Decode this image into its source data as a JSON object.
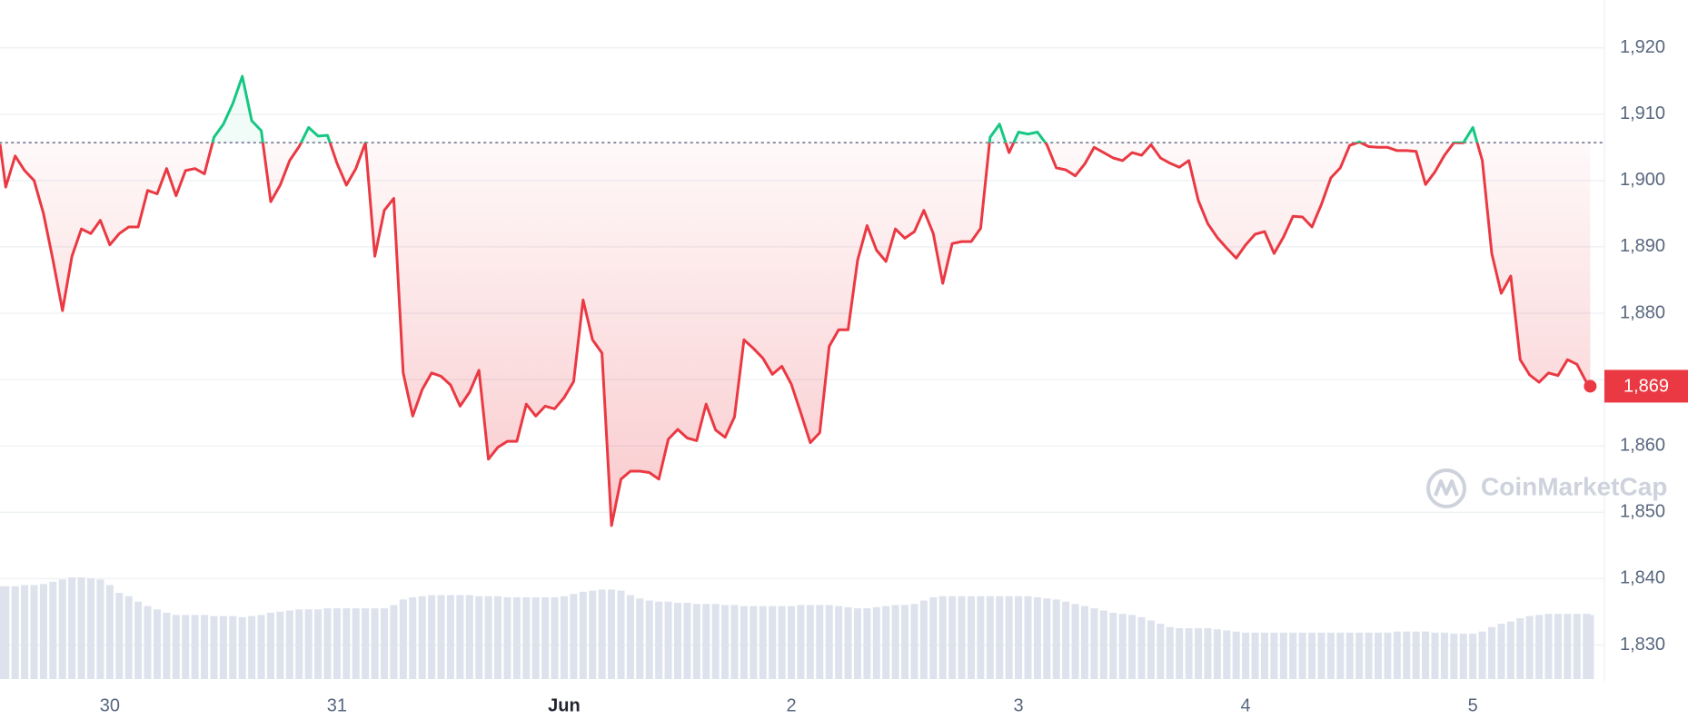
{
  "chart_data": {
    "type": "line",
    "x": [
      -11.6,
      -11,
      -10,
      -9,
      -8,
      -7,
      -6,
      -5,
      -4,
      -3,
      -2,
      -1,
      0,
      1,
      2,
      3,
      4,
      5,
      6,
      7,
      8,
      9,
      10,
      11,
      12,
      13,
      14,
      15,
      16,
      17,
      18,
      19,
      20,
      21,
      22,
      23,
      24,
      25,
      26,
      27,
      28,
      29,
      30,
      31,
      32,
      33,
      34,
      35,
      36,
      37,
      38,
      39,
      40,
      41,
      42,
      43,
      44,
      45,
      46,
      47,
      48,
      49,
      50,
      51,
      52,
      53,
      54,
      55,
      56,
      57,
      58,
      59,
      60,
      61,
      62,
      63,
      64,
      65,
      66,
      67,
      68,
      69,
      70,
      71,
      72,
      73,
      74,
      75,
      76,
      77,
      78,
      79,
      80,
      81,
      82,
      83,
      84,
      85,
      86,
      87,
      88,
      89,
      90,
      91,
      92,
      93,
      94,
      95,
      96,
      97,
      98,
      99,
      100,
      101,
      102,
      103,
      104,
      105,
      106,
      107,
      108,
      109,
      110,
      111,
      112,
      113,
      114,
      115,
      116,
      117,
      118,
      119,
      120,
      121,
      122,
      123,
      124,
      125,
      126,
      127,
      128,
      129,
      130,
      131,
      132,
      133,
      134,
      135,
      136,
      137,
      138,
      139,
      140,
      141,
      142,
      143,
      144,
      145,
      146,
      147,
      148,
      149,
      150,
      151,
      152,
      153,
      154,
      155,
      156,
      156.4
    ],
    "values": [
      1905.5,
      1899,
      1903.7,
      1901.5,
      1900,
      1895,
      1888,
      1880.4,
      1888.6,
      1892.7,
      1892,
      1894,
      1890.3,
      1892,
      1893,
      1893,
      1898.5,
      1898,
      1901.8,
      1897.7,
      1901.5,
      1901.8,
      1901,
      1906.5,
      1908.5,
      1911.6,
      1915.7,
      1909,
      1907.5,
      1896.8,
      1899.3,
      1903,
      1905.1,
      1908,
      1906.7,
      1906.8,
      1902.6,
      1899.3,
      1901.8,
      1905.7,
      1888.6,
      1895.5,
      1897.3,
      1871,
      1864.5,
      1868.5,
      1871,
      1870.5,
      1869.2,
      1866,
      1868.1,
      1871.4,
      1858,
      1859.8,
      1860.7,
      1860.7,
      1866.3,
      1864.5,
      1866,
      1865.6,
      1867.3,
      1869.7,
      1882,
      1876,
      1874,
      1848,
      1855,
      1856.2,
      1856.2,
      1856,
      1855,
      1861,
      1862.5,
      1861.2,
      1860.8,
      1866.3,
      1862.4,
      1861.3,
      1864.4,
      1876,
      1874.7,
      1873.2,
      1870.8,
      1872,
      1869.3,
      1865,
      1860.5,
      1862,
      1875,
      1877.5,
      1877.5,
      1888,
      1893.2,
      1889.5,
      1887.8,
      1892.7,
      1891.3,
      1892.3,
      1895.5,
      1892,
      1884.5,
      1890.5,
      1890.8,
      1890.8,
      1892.8,
      1906.5,
      1908.5,
      1904.2,
      1907.3,
      1907,
      1907.3,
      1905.4,
      1901.9,
      1901.6,
      1900.7,
      1902.5,
      1905,
      1904.2,
      1903.4,
      1903,
      1904.2,
      1903.8,
      1905.4,
      1903.4,
      1902.6,
      1902,
      1903,
      1897,
      1893.5,
      1891.4,
      1889.8,
      1888.3,
      1890.3,
      1891.9,
      1892.3,
      1889,
      1891.5,
      1894.6,
      1894.5,
      1893,
      1896.4,
      1900.4,
      1901.9,
      1905.3,
      1905.8,
      1905.1,
      1905,
      1905,
      1904.5,
      1904.5,
      1904.4,
      1899.4,
      1901.3,
      1903.8,
      1905.7,
      1905.7,
      1908,
      1903,
      1889,
      1883,
      1885.6,
      1873,
      1870.7,
      1869.6,
      1871,
      1870.6,
      1873,
      1872.3,
      1869.6,
      1869
    ],
    "volume": [
      84,
      84,
      84,
      85,
      85,
      86,
      88,
      90,
      92,
      92,
      91,
      90,
      85,
      78,
      75,
      70,
      66,
      63,
      60,
      58,
      58,
      58,
      58,
      57,
      57,
      57,
      56,
      57,
      58,
      60,
      61,
      62,
      63,
      63,
      63,
      64,
      64,
      64,
      64,
      64,
      64,
      64,
      67,
      72,
      74,
      75,
      76,
      76,
      76,
      76,
      76,
      75,
      75,
      75,
      74,
      74,
      74,
      74,
      74,
      74,
      75,
      77,
      79,
      80,
      81,
      81,
      80,
      76,
      73,
      71,
      70,
      70,
      69,
      69,
      68,
      68,
      68,
      67,
      67,
      66,
      66,
      66,
      66,
      66,
      66,
      67,
      67,
      67,
      67,
      66,
      65,
      64,
      64,
      65,
      66,
      67,
      67,
      68,
      71,
      74,
      75,
      75,
      75,
      75,
      75,
      75,
      75,
      75,
      75,
      75,
      74,
      73,
      72,
      70,
      68,
      66,
      64,
      62,
      60,
      59,
      58,
      56,
      53,
      50,
      47,
      46,
      46,
      46,
      46,
      45,
      44,
      43,
      42,
      42,
      42,
      42,
      42,
      42,
      42,
      42,
      42,
      42,
      42,
      42,
      42,
      42,
      42,
      42,
      43,
      43,
      43,
      43,
      42,
      42,
      41,
      41,
      41,
      43,
      47,
      50,
      52,
      55,
      57,
      58,
      59,
      59,
      59,
      59,
      59,
      58
    ],
    "color": "#ea3943",
    "color_up": "#16c784",
    "volume_color": "#dde2ec",
    "baseline": 1905.7,
    "xlim": [
      -11.6,
      157.9
    ],
    "xticks": [
      {
        "value": 0,
        "label": "30"
      },
      {
        "value": 24,
        "label": "31"
      },
      {
        "value": 48,
        "label": "Jun"
      },
      {
        "value": 72,
        "label": "2"
      },
      {
        "value": 96,
        "label": "3"
      },
      {
        "value": 120,
        "label": "4"
      },
      {
        "value": 144,
        "label": "5"
      }
    ],
    "ylim": [
      1824.6,
      1927.2
    ],
    "yticks": [
      {
        "value": 1830,
        "label": "1,830"
      },
      {
        "value": 1840,
        "label": "1,840"
      },
      {
        "value": 1850,
        "label": "1,850"
      },
      {
        "value": 1860,
        "label": "1,860"
      },
      {
        "value": 1870,
        "label": "1,870"
      },
      {
        "value": 1880,
        "label": "1,880"
      },
      {
        "value": 1890,
        "label": "1,890"
      },
      {
        "value": 1900,
        "label": "1,900"
      },
      {
        "value": 1910,
        "label": "1,910"
      },
      {
        "value": 1920,
        "label": "1,920"
      }
    ],
    "grid": true,
    "price_tag": {
      "value": 1869,
      "label": "1,869"
    },
    "watermark": "CoinMarketCap"
  }
}
